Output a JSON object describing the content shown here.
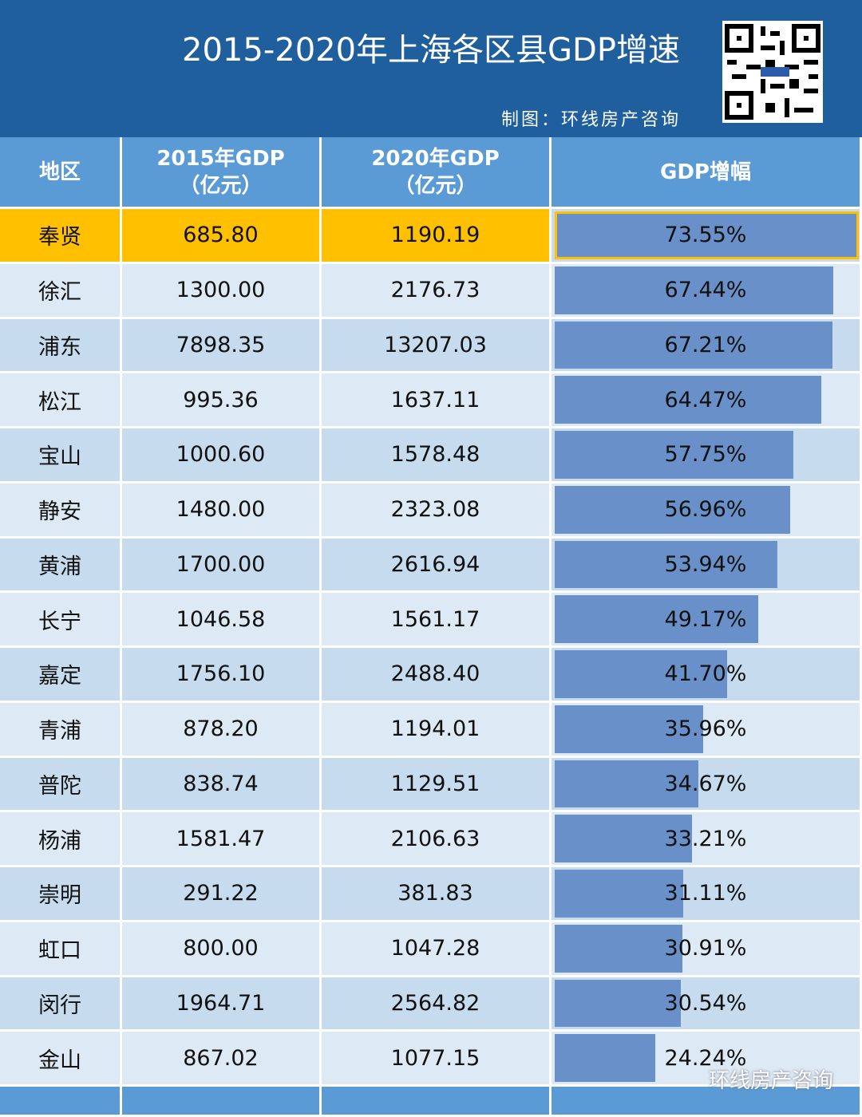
{
  "header": {
    "title": "2015-2020年上海各区县GDP增速",
    "credit": "制图：环线房产咨询"
  },
  "table": {
    "columns": [
      [
        "地区"
      ],
      [
        "2015年GDP",
        "（亿元）"
      ],
      [
        "2020年GDP",
        "（亿元）"
      ],
      [
        "GDP增幅"
      ]
    ],
    "rows": [
      [
        "奉贤",
        "685.80",
        "1190.19",
        "73.55%"
      ],
      [
        "徐汇",
        "1300.00",
        "2176.73",
        "67.44%"
      ],
      [
        "浦东",
        "7898.35",
        "13207.03",
        "67.21%"
      ],
      [
        "松江",
        "995.36",
        "1637.11",
        "64.47%"
      ],
      [
        "宝山",
        "1000.60",
        "1578.48",
        "57.75%"
      ],
      [
        "静安",
        "1480.00",
        "2323.08",
        "56.96%"
      ],
      [
        "黄浦",
        "1700.00",
        "2616.94",
        "53.94%"
      ],
      [
        "长宁",
        "1046.58",
        "1561.17",
        "49.17%"
      ],
      [
        "嘉定",
        "1756.10",
        "2488.40",
        "41.70%"
      ],
      [
        "青浦",
        "878.20",
        "1194.01",
        "35.96%"
      ],
      [
        "普陀",
        "838.74",
        "1129.51",
        "34.67%"
      ],
      [
        "杨浦",
        "1581.47",
        "2106.63",
        "33.21%"
      ],
      [
        "崇明",
        "291.22",
        "381.83",
        "31.11%"
      ],
      [
        "虹口",
        "800.00",
        "1047.28",
        "30.91%"
      ],
      [
        "闵行",
        "1964.71",
        "2564.82",
        "30.54%"
      ],
      [
        "金山",
        "867.02",
        "1077.15",
        "24.24%"
      ]
    ],
    "highlight_row": 0,
    "highlight_color": "#ffc000",
    "bar_color": "#6990c8"
  },
  "watermark": "环线房产咨询"
}
